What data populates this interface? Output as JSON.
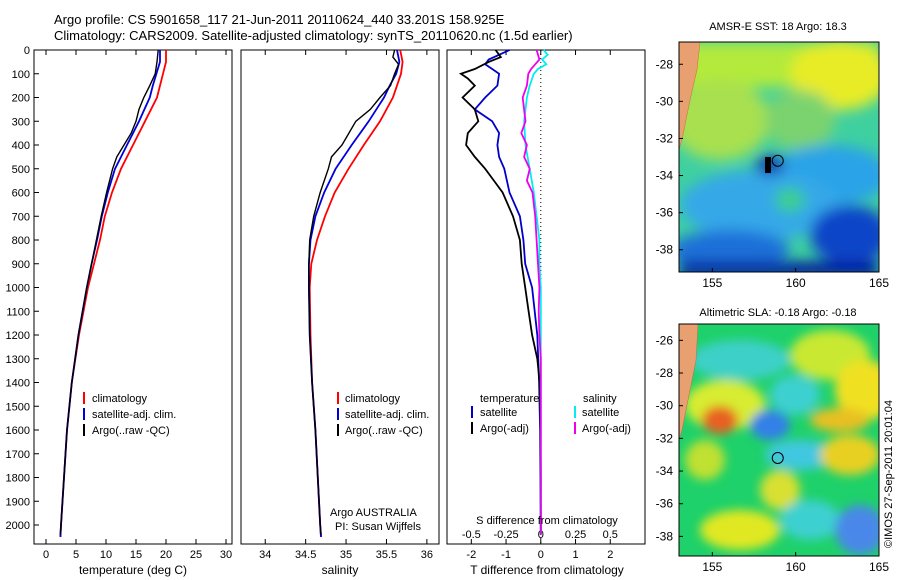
{
  "header": {
    "line1": "Argo profile: CS 5901658_117 21-Jun-2011 20110624_440 33.201S 158.925E",
    "line2": "Climatology: CARS2009. Satellite-adjusted climatology: synTS_20110620.nc (1.5d earlier)"
  },
  "colors": {
    "climatology": "#ff0000",
    "satellite": "#0000dd",
    "argo": "#000000",
    "sat_t_diff": "#0000cc",
    "argo_t_diff": "#000000",
    "sat_s_diff": "#00eeee",
    "argo_s_diff": "#ee00ee"
  },
  "chart_data": [
    {
      "type": "line",
      "id": "temperature",
      "xlabel": "temperature (deg C)",
      "xlim": [
        -2,
        31
      ],
      "xticks": [
        0,
        5,
        10,
        15,
        20,
        25,
        30
      ],
      "ylim": [
        0,
        2080
      ],
      "yticks": [
        0,
        100,
        200,
        300,
        400,
        500,
        600,
        700,
        800,
        900,
        1000,
        1100,
        1200,
        1300,
        1400,
        1500,
        1600,
        1700,
        1800,
        1900,
        2000
      ],
      "legend": [
        "climatology",
        "satellite-adj. clim.",
        "Argo(..raw -QC)"
      ],
      "series": [
        {
          "name": "climatology",
          "depth": [
            0,
            50,
            100,
            150,
            200,
            300,
            400,
            500,
            600,
            700,
            800,
            900,
            1000,
            1200,
            1400,
            1600,
            1800,
            2000,
            2050
          ],
          "values": [
            20,
            20,
            19.5,
            19,
            18.5,
            16.5,
            14.5,
            12.5,
            11,
            9.8,
            9,
            8,
            7,
            5.5,
            4.3,
            3.5,
            3,
            2.5,
            2.4
          ]
        },
        {
          "name": "satellite",
          "depth": [
            0,
            50,
            100,
            150,
            200,
            300,
            400,
            500,
            600,
            700,
            800,
            900,
            1000,
            1200,
            1400,
            1600,
            1800,
            2000,
            2050
          ],
          "values": [
            19,
            19,
            18.4,
            17.8,
            17.3,
            15.5,
            13.5,
            11.5,
            10.3,
            9.3,
            8.5,
            7.6,
            6.8,
            5.4,
            4.3,
            3.5,
            3,
            2.5,
            2.4
          ]
        },
        {
          "name": "argo",
          "depth": [
            0,
            50,
            100,
            150,
            200,
            250,
            300,
            350,
            400,
            450,
            500,
            600,
            700,
            800,
            900,
            1000,
            1200,
            1400,
            1600,
            1800,
            2000,
            2040
          ],
          "values": [
            18.7,
            18.5,
            18.2,
            17.3,
            16.3,
            15.5,
            15,
            14.2,
            13,
            11.8,
            11.1,
            10.1,
            9.2,
            8.4,
            7.6,
            6.8,
            5.4,
            4.3,
            3.5,
            3,
            2.5,
            2.4
          ]
        }
      ]
    },
    {
      "type": "line",
      "id": "salinity",
      "xlabel": "salinity",
      "xlim": [
        33.7,
        36.15
      ],
      "xticks": [
        34,
        34.5,
        35,
        35.5,
        36
      ],
      "xticklabels": [
        "34",
        "34.5",
        "35",
        "35.5",
        "36"
      ],
      "ylim": [
        0,
        2080
      ],
      "legend": [
        "climatology",
        "satellite-adj. clim.",
        "Argo(..raw -QC)"
      ],
      "series": [
        {
          "name": "climatology",
          "depth": [
            0,
            50,
            100,
            150,
            200,
            300,
            400,
            500,
            600,
            700,
            800,
            900,
            1000,
            1200,
            1400,
            1600,
            1800,
            2000,
            2050
          ],
          "values": [
            35.67,
            35.7,
            35.68,
            35.63,
            35.58,
            35.42,
            35.22,
            35.03,
            34.86,
            34.74,
            34.64,
            34.57,
            34.55,
            34.56,
            34.58,
            34.62,
            34.65,
            34.68,
            34.69
          ]
        },
        {
          "name": "satellite",
          "depth": [
            0,
            50,
            100,
            150,
            200,
            300,
            400,
            500,
            600,
            700,
            800,
            900,
            1000,
            1200,
            1400,
            1600,
            1800,
            2000,
            2050
          ],
          "values": [
            35.63,
            35.66,
            35.62,
            35.54,
            35.47,
            35.28,
            35.07,
            34.87,
            34.73,
            34.62,
            34.56,
            34.54,
            34.54,
            34.55,
            34.58,
            34.62,
            34.65,
            34.68,
            34.69
          ]
        },
        {
          "name": "argo",
          "depth": [
            0,
            30,
            60,
            100,
            150,
            200,
            250,
            300,
            400,
            450,
            500,
            600,
            700,
            800,
            900,
            1000,
            1200,
            1400,
            1600,
            1800,
            2000,
            2040
          ],
          "values": [
            35.6,
            35.58,
            35.65,
            35.6,
            35.55,
            35.42,
            35.3,
            35.12,
            34.95,
            34.82,
            34.78,
            34.68,
            34.6,
            34.55,
            34.54,
            34.54,
            34.55,
            34.58,
            34.62,
            34.65,
            34.68,
            34.69
          ]
        }
      ]
    },
    {
      "type": "line",
      "id": "differences",
      "xlabel": "T difference from climatology",
      "x2label": "S difference from climatology",
      "xlim": [
        -2.7,
        3
      ],
      "xticks": [
        -2,
        -1,
        0,
        1,
        2
      ],
      "s_ticks": [
        -0.5,
        -0.25,
        0,
        0.25,
        0.5
      ],
      "s_ticklabels": [
        "-0.5",
        "-0.25",
        "0",
        "0.25",
        "0.5"
      ],
      "ylim": [
        0,
        2080
      ],
      "legend_headers": [
        "temperature",
        "salinity"
      ],
      "legend": [
        "satellite",
        "Argo(-adj)",
        "satellite",
        "Argo(-adj)"
      ],
      "series": [
        {
          "name": "T satellite",
          "depth": [
            0,
            20,
            40,
            60,
            80,
            100,
            150,
            200,
            250,
            300,
            350,
            400,
            450,
            500,
            600,
            700,
            800,
            900,
            1000,
            1200,
            1400,
            1600,
            1800,
            2000,
            2040
          ],
          "values": [
            -0.9,
            -1.2,
            -1.5,
            -1.6,
            -1.4,
            -1.2,
            -1.25,
            -1.6,
            -1.9,
            -1.4,
            -1.2,
            -1.25,
            -1.2,
            -1.05,
            -0.9,
            -0.6,
            -0.5,
            -0.45,
            -0.25,
            -0.1,
            -0.05,
            -0.02,
            -0.01,
            0,
            0
          ]
        },
        {
          "name": "T argo",
          "depth": [
            0,
            30,
            50,
            80,
            100,
            120,
            150,
            200,
            250,
            300,
            350,
            400,
            450,
            500,
            550,
            600,
            700,
            800,
            900,
            1000,
            1100,
            1200,
            1300,
            1400,
            1600,
            1800,
            2000,
            2040
          ],
          "values": [
            -1.3,
            -1.15,
            -1.5,
            -1.9,
            -2.3,
            -2.1,
            -1.9,
            -2.25,
            -1.9,
            -1.8,
            -2.1,
            -2.15,
            -1.9,
            -1.6,
            -1.35,
            -1.1,
            -0.8,
            -0.6,
            -0.55,
            -0.45,
            -0.35,
            -0.25,
            -0.1,
            -0.03,
            -0.01,
            0,
            0,
            0
          ]
        },
        {
          "name": "S satellite",
          "depth": [
            0,
            20,
            40,
            60,
            80,
            100,
            150,
            200,
            300,
            400,
            500,
            600,
            700,
            800,
            900,
            1000,
            1200,
            1400,
            1600,
            1800,
            2000,
            2040
          ],
          "values": [
            0.02,
            0.05,
            0.01,
            0.04,
            -0.02,
            -0.05,
            -0.08,
            -0.1,
            -0.12,
            -0.11,
            -0.08,
            -0.05,
            -0.03,
            -0.01,
            -0.01,
            0,
            0,
            0,
            0,
            0,
            0,
            0
          ]
        },
        {
          "name": "S argo",
          "depth": [
            0,
            20,
            40,
            60,
            80,
            100,
            150,
            200,
            250,
            300,
            350,
            400,
            450,
            500,
            550,
            600,
            700,
            800,
            900,
            1000,
            1100,
            1200,
            1300,
            1400,
            1600,
            1800,
            2000,
            2040
          ],
          "values": [
            -0.03,
            -0.02,
            -0.01,
            -0.04,
            -0.07,
            -0.09,
            -0.1,
            -0.13,
            -0.12,
            -0.11,
            -0.14,
            -0.1,
            -0.12,
            -0.08,
            -0.1,
            -0.06,
            -0.04,
            -0.03,
            -0.02,
            -0.01,
            -0.015,
            -0.01,
            0,
            0,
            0,
            0,
            0,
            0
          ]
        }
      ]
    },
    {
      "type": "heatmap",
      "id": "sst",
      "title": "AMSR-E SST: 18 Argo: 18.3",
      "xticks": [
        155,
        160,
        165
      ],
      "yticks": [
        -28,
        -30,
        -32,
        -34,
        -36,
        -38
      ],
      "xlim": [
        153,
        165
      ],
      "ylim": [
        -39.2,
        -26.8
      ],
      "float_lon": 158.925,
      "float_lat": -33.201
    },
    {
      "type": "heatmap",
      "id": "sla",
      "title": "Altimetric SLA: -0.18 Argo: -0.18",
      "xticks": [
        155,
        160,
        165
      ],
      "yticks": [
        -26,
        -28,
        -30,
        -32,
        -34,
        -36,
        -38
      ],
      "xlim": [
        153,
        165
      ],
      "ylim": [
        -39.2,
        -25
      ]
    }
  ],
  "credit": {
    "organisation": "Argo AUSTRALIA",
    "pi": "PI: Susan Wijffels",
    "stamp": "©IMOS 27-Sep-2011 20:01:04"
  }
}
